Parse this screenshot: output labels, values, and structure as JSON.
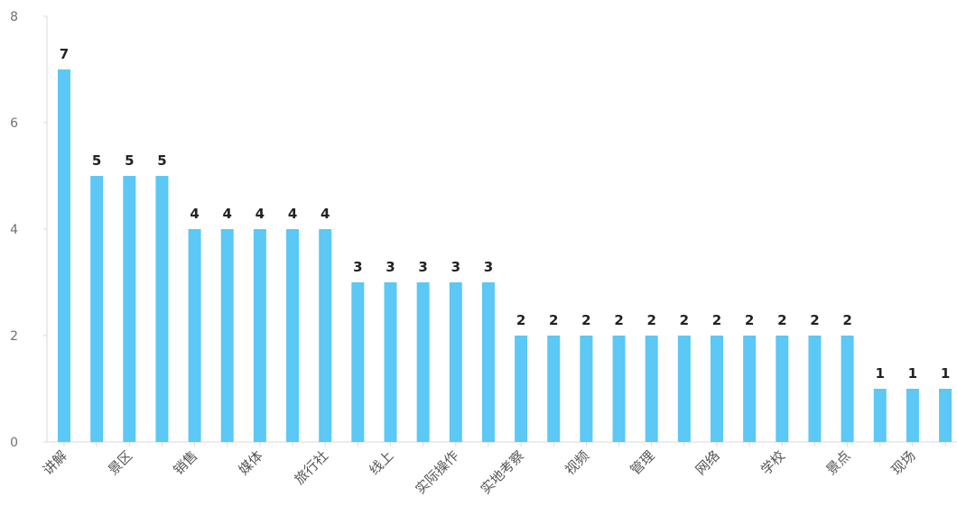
{
  "chart_data": {
    "type": "bar",
    "title": "",
    "xlabel": "",
    "ylabel": "",
    "ylim": [
      0,
      8
    ],
    "yticks": [
      0,
      2,
      4,
      6,
      8
    ],
    "grid": false,
    "bar_color": "#5bc8f5",
    "categories": [
      "讲解",
      "",
      "景区",
      "",
      "销售",
      "",
      "媒体",
      "",
      "旅行社",
      "",
      "线上",
      "",
      "实际操作",
      "",
      "实地考察",
      "",
      "视频",
      "",
      "管理",
      "",
      "网络",
      "",
      "学校",
      "",
      "景点",
      "",
      "现场",
      ""
    ],
    "values": [
      7,
      5,
      5,
      5,
      4,
      4,
      4,
      4,
      4,
      3,
      3,
      3,
      3,
      3,
      2,
      2,
      2,
      2,
      2,
      2,
      2,
      2,
      2,
      2,
      2,
      1,
      1,
      1
    ],
    "data_labels": [
      "7",
      "5",
      "5",
      "5",
      "4",
      "4",
      "4",
      "4",
      "4",
      "3",
      "3",
      "3",
      "3",
      "3",
      "2",
      "2",
      "2",
      "2",
      "2",
      "2",
      "2",
      "2",
      "2",
      "2",
      "2",
      "1",
      "1",
      "1"
    ]
  }
}
